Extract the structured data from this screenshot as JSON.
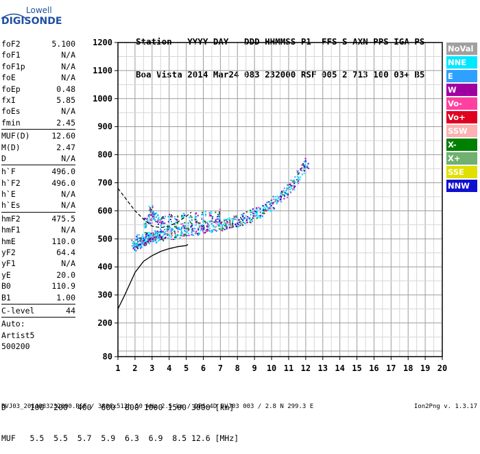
{
  "logo": {
    "top": "Lowell",
    "main": "DIGISONDE"
  },
  "header": {
    "line1": "Station   YYYY DAY   DDD HHMMSS P1  FFS S AXN PPS IGA PS",
    "line2": "Boa Vista 2014 Mar24 083 232000 RSF 005 2 713 100 03+ B5"
  },
  "params": {
    "g1": [
      {
        "name": "foF2",
        "value": "5.100"
      },
      {
        "name": "foF1",
        "value": "N/A"
      },
      {
        "name": "foF1p",
        "value": "N/A"
      },
      {
        "name": "foE",
        "value": "N/A"
      },
      {
        "name": "foEp",
        "value": "0.48"
      },
      {
        "name": "fxI",
        "value": "5.85"
      },
      {
        "name": "foEs",
        "value": "N/A"
      },
      {
        "name": "fmin",
        "value": "2.45"
      }
    ],
    "g2": [
      {
        "name": "MUF(D)",
        "value": "12.60"
      },
      {
        "name": "M(D)",
        "value": "2.47"
      },
      {
        "name": "D",
        "value": "N/A"
      }
    ],
    "g3": [
      {
        "name": "h`F",
        "value": "496.0"
      },
      {
        "name": "h`F2",
        "value": "496.0"
      },
      {
        "name": "h`E",
        "value": "N/A"
      },
      {
        "name": "h`Es",
        "value": "N/A"
      }
    ],
    "g4": [
      {
        "name": "hmF2",
        "value": "475.5"
      },
      {
        "name": "hmF1",
        "value": "N/A"
      },
      {
        "name": "hmE",
        "value": "110.0"
      },
      {
        "name": "yF2",
        "value": "64.4"
      },
      {
        "name": "yF1",
        "value": "N/A"
      },
      {
        "name": "yE",
        "value": "20.0"
      },
      {
        "name": "B0",
        "value": "110.9"
      },
      {
        "name": "B1",
        "value": "1.00"
      }
    ],
    "g5": [
      {
        "name": "C-level",
        "value": "44"
      }
    ],
    "auto": [
      "Auto:",
      "Artist5",
      "500200"
    ]
  },
  "legend": [
    {
      "label": "NoVal",
      "color": "#a0a0a0"
    },
    {
      "label": "NNE",
      "color": "#00e8ff"
    },
    {
      "label": "E",
      "color": "#2fa0ff"
    },
    {
      "label": "W",
      "color": "#a000a0"
    },
    {
      "label": "Vo-",
      "color": "#ff40a0"
    },
    {
      "label": "Vo+",
      "color": "#e00020"
    },
    {
      "label": "SSW",
      "color": "#ffb0b0"
    },
    {
      "label": "X-",
      "color": "#008000"
    },
    {
      "label": "X+",
      "color": "#70b070"
    },
    {
      "label": "SSE",
      "color": "#e0e000"
    },
    {
      "label": "NNW",
      "color": "#1010d0"
    }
  ],
  "bottom": {
    "line1": "D     100  200  400  600  800 1000 1500 3000 [km]",
    "line2": "MUF   5.5  5.5  5.7  5.9  6.3  6.9  8.5 12.6 [MHz]",
    "footer": "BVJ03_2014083232000.RSF / 380fx512h 50 kHz 2.5 km / DPS-4D BVJ03 003 / 2.8 N 299.3 E",
    "version": "Ion2Png v. 1.3.17"
  },
  "chart_data": {
    "type": "scatter",
    "x_ticks": [
      "1",
      "2",
      "3",
      "4",
      "5",
      "6",
      "7",
      "8",
      "9",
      "10",
      "11",
      "12",
      "13",
      "14",
      "15",
      "16",
      "17",
      "18",
      "19",
      "20"
    ],
    "y_ticks": [
      "80",
      "200",
      "300",
      "400",
      "500",
      "600",
      "700",
      "800",
      "900",
      "1000",
      "1100",
      "1200"
    ],
    "xlim": [
      1,
      20
    ],
    "ylim": [
      80,
      1200
    ],
    "grid": true,
    "legend_position": "right",
    "series": [
      {
        "name": "Ionogram trace",
        "points": [
          [
            1.9,
            480
          ],
          [
            2.0,
            475
          ],
          [
            2.1,
            490
          ],
          [
            2.2,
            500
          ],
          [
            2.3,
            485
          ],
          [
            2.4,
            495
          ],
          [
            2.5,
            500
          ],
          [
            2.6,
            505
          ],
          [
            2.7,
            500
          ],
          [
            2.8,
            510
          ],
          [
            2.9,
            505
          ],
          [
            3.0,
            515
          ],
          [
            3.1,
            510
          ],
          [
            3.2,
            505
          ],
          [
            3.3,
            515
          ],
          [
            3.4,
            520
          ],
          [
            3.5,
            515
          ],
          [
            3.6,
            520
          ],
          [
            3.8,
            520
          ],
          [
            4.0,
            525
          ],
          [
            4.2,
            520
          ],
          [
            4.4,
            525
          ],
          [
            4.6,
            525
          ],
          [
            4.8,
            530
          ],
          [
            5.0,
            530
          ],
          [
            5.2,
            530
          ],
          [
            5.4,
            535
          ],
          [
            5.6,
            535
          ],
          [
            5.8,
            540
          ],
          [
            6.0,
            540
          ],
          [
            6.2,
            545
          ],
          [
            6.4,
            545
          ],
          [
            6.6,
            550
          ],
          [
            6.8,
            550
          ],
          [
            7.0,
            550
          ],
          [
            7.2,
            555
          ],
          [
            7.4,
            555
          ],
          [
            7.6,
            560
          ],
          [
            7.8,
            565
          ],
          [
            8.0,
            565
          ],
          [
            8.2,
            570
          ],
          [
            8.4,
            575
          ],
          [
            8.6,
            580
          ],
          [
            8.8,
            585
          ],
          [
            9.0,
            590
          ],
          [
            9.2,
            595
          ],
          [
            9.4,
            600
          ],
          [
            9.6,
            605
          ],
          [
            9.8,
            615
          ],
          [
            10.0,
            625
          ],
          [
            10.2,
            635
          ],
          [
            10.4,
            645
          ],
          [
            10.6,
            655
          ],
          [
            10.8,
            665
          ],
          [
            11.0,
            680
          ],
          [
            11.2,
            695
          ],
          [
            11.4,
            710
          ],
          [
            11.6,
            730
          ],
          [
            11.8,
            750
          ],
          [
            12.0,
            770
          ],
          [
            2.6,
            560
          ],
          [
            2.8,
            570
          ],
          [
            3.0,
            575
          ],
          [
            3.2,
            580
          ],
          [
            3.4,
            570
          ],
          [
            3.6,
            565
          ],
          [
            3.0,
            590
          ],
          [
            2.9,
            600
          ],
          [
            4.0,
            570
          ],
          [
            4.4,
            565
          ],
          [
            4.8,
            575
          ],
          [
            5.2,
            570
          ],
          [
            5.6,
            575
          ],
          [
            6.0,
            580
          ],
          [
            6.4,
            585
          ],
          [
            6.8,
            590
          ]
        ]
      },
      {
        "name": "Model profile",
        "line": [
          [
            1.0,
            250
          ],
          [
            1.4,
            300
          ],
          [
            2.0,
            380
          ],
          [
            2.5,
            420
          ],
          [
            3.0,
            440
          ],
          [
            3.5,
            455
          ],
          [
            4.0,
            465
          ],
          [
            4.5,
            472
          ],
          [
            5.0,
            476
          ],
          [
            5.1,
            480
          ]
        ]
      },
      {
        "name": "Model trace (x-mode)",
        "line": [
          [
            1.0,
            680
          ],
          [
            1.5,
            640
          ],
          [
            2.0,
            600
          ],
          [
            2.5,
            570
          ],
          [
            3.0,
            545
          ],
          [
            3.5,
            540
          ],
          [
            4.0,
            545
          ],
          [
            4.5,
            560
          ],
          [
            5.0,
            580
          ],
          [
            5.3,
            595
          ]
        ]
      }
    ]
  }
}
